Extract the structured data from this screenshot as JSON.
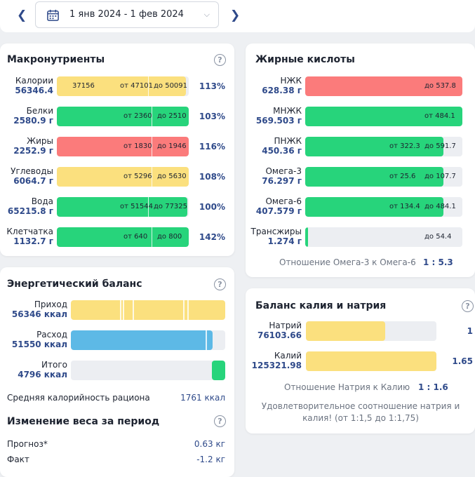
{
  "colors": {
    "yellow": "#fbe07e",
    "green": "#27d47b",
    "red": "#fb7b7b",
    "blue": "#5db9e6",
    "accent": "#2f4a8a"
  },
  "header": {
    "date_range": "1 янв 2024 - 1 фев 2024",
    "prev_icon": "chevron-left-icon",
    "next_icon": "chevron-right-icon",
    "calendar_icon": "calendar-icon"
  },
  "macros": {
    "title": "Макронутриенты",
    "rows": [
      {
        "name": "Калории",
        "value": "56346.4",
        "color": "yellow",
        "fill": 0.98,
        "label_left": "37156",
        "label_from": "от 47101",
        "label_to": "до 50091",
        "pct": "113%"
      },
      {
        "name": "Белки",
        "value": "2580.9 г",
        "color": "green",
        "fill": 1.0,
        "label_from": "от 2360",
        "label_to": "до 2510",
        "pct": "103%"
      },
      {
        "name": "Жиры",
        "value": "2252.9 г",
        "color": "red",
        "fill": 1.0,
        "label_from": "от 1830",
        "label_to": "до 1946",
        "pct": "116%"
      },
      {
        "name": "Углеводы",
        "value": "6064.7 г",
        "color": "yellow",
        "fill": 1.0,
        "label_from": "от 5296",
        "label_to": "до 5630",
        "pct": "108%"
      },
      {
        "name": "Вода",
        "value": "65215.8 г",
        "color": "green",
        "fill": 0.99,
        "label_from": "от 51544",
        "label_to": "до 77325",
        "pct": "100%"
      },
      {
        "name": "Клетчатка",
        "value": "1132.7 г",
        "color": "green",
        "fill": 1.0,
        "label_from": "от 640",
        "label_to": "до 800",
        "pct": "142%"
      }
    ]
  },
  "fatty": {
    "title": "Жирные кислоты",
    "rows": [
      {
        "name": "НЖК",
        "value": "628.38 г",
        "color": "red",
        "fill": 1.0,
        "label_from": "",
        "label_to": "до 537.8"
      },
      {
        "name": "МНЖК",
        "value": "569.503 г",
        "color": "green",
        "fill": 1.0,
        "label_from": "",
        "label_to": "от 484.1"
      },
      {
        "name": "ПНЖК",
        "value": "450.36 г",
        "color": "green",
        "fill": 0.88,
        "label_from": "от 322.3",
        "label_to": "до 591.7"
      },
      {
        "name": "Омега-3",
        "value": "76.297 г",
        "color": "green",
        "fill": 0.88,
        "label_from": "от 25.6",
        "label_to": "до 107.7"
      },
      {
        "name": "Омега-6",
        "value": "407.579 г",
        "color": "green",
        "fill": 0.88,
        "label_from": "от 134.4",
        "label_to": "до 484.1"
      },
      {
        "name": "Трансжиры",
        "value": "1.274 г",
        "color": "green",
        "fill": 0.02,
        "label_from": "",
        "label_to": "до 54.4"
      }
    ],
    "ratio_label": "Отношение Омега-3 к Омега-6",
    "ratio_value": "1 : 5.3"
  },
  "energy": {
    "title": "Энергетический баланс",
    "rows": [
      {
        "name": "Приход",
        "value": "56346 ккал",
        "color": "yellow",
        "fill": 1.0
      },
      {
        "name": "Расход",
        "value": "51550 ккал",
        "color": "blue",
        "fill": 0.92
      },
      {
        "name": "Итого",
        "value": "4796 ккал",
        "color": "green",
        "fill": 0.085
      }
    ],
    "avg_label": "Средняя калорийность рациона",
    "avg_value": "1761 ккал"
  },
  "weight": {
    "title": "Изменение веса за период",
    "forecast_label": "Прогноз*",
    "forecast_value": "0.63 кг",
    "fact_label": "Факт",
    "fact_value": "-1.2 кг"
  },
  "kna": {
    "title": "Баланс калия и натрия",
    "rows": [
      {
        "name": "Натрий",
        "value": "76103.66",
        "color": "yellow",
        "fill": 0.61,
        "ratio": "1"
      },
      {
        "name": "Калий",
        "value": "125321.98",
        "color": "yellow",
        "fill": 1.0,
        "ratio": "1.65"
      }
    ],
    "ratio_label": "Отношение Натрия к Калию",
    "ratio_value": "1 : 1.6",
    "note": "Удовлетворительное соотношение натрия и калия! (от 1:1,5 до 1:1,75)"
  }
}
